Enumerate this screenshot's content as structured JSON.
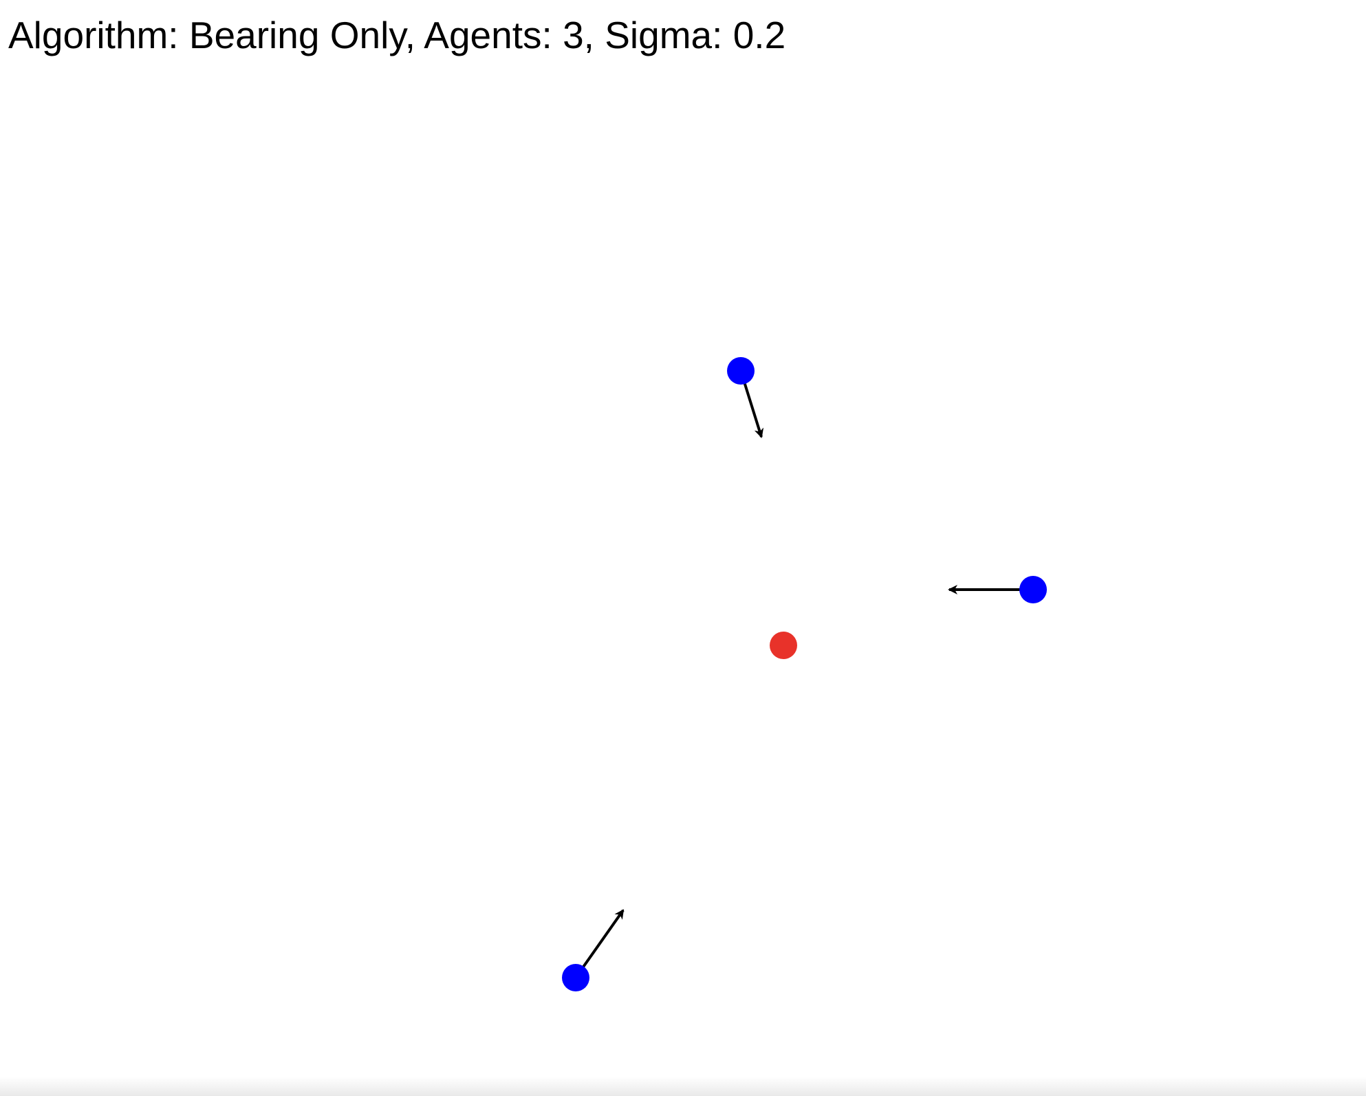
{
  "status": {
    "algorithm_label": "Algorithm:",
    "algorithm": "Bearing Only",
    "agents_label": "Agents:",
    "agents": "3",
    "sigma_label": "Sigma:",
    "sigma": "0.2"
  },
  "colors": {
    "agent": "#0000ff",
    "target": "#e8322a",
    "arrow": "#000000",
    "background": "#ffffff"
  },
  "icons": {
    "agent": "blue-dot-icon",
    "target": "red-dot-icon",
    "heading": "arrow-icon"
  }
}
